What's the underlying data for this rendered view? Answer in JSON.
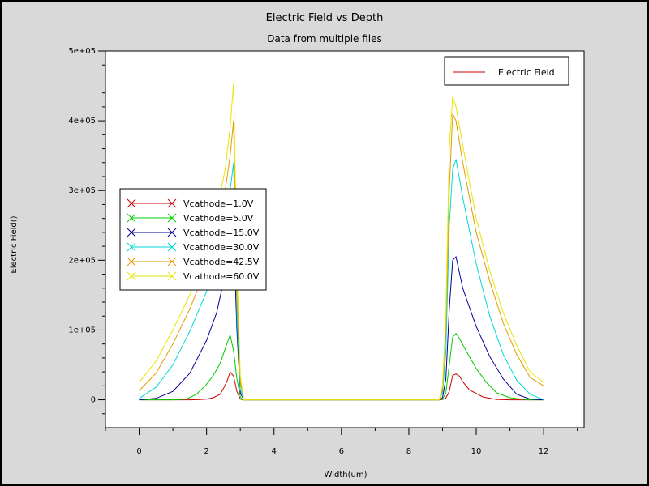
{
  "chart_data": {
    "type": "line",
    "title": "Electric Field vs Depth",
    "subtitle": "Data from multiple files",
    "xlabel": "Width(um)",
    "ylabel": "Electric Field()",
    "xlim": [
      -1,
      13.2
    ],
    "ylim": [
      -40000,
      500000
    ],
    "x_ticks": [
      0,
      2,
      4,
      6,
      8,
      10,
      12
    ],
    "y_ticks": [
      0,
      100000,
      200000,
      300000,
      400000,
      500000
    ],
    "y_tick_labels": [
      "0",
      "1e+05",
      "2e+05",
      "3e+05",
      "4e+05",
      "5e+05"
    ],
    "grid": false,
    "upper_legend": {
      "position": "top-right",
      "entry": {
        "name": "Electric Field",
        "color": "#cc0000"
      }
    },
    "legend_position": "center-left",
    "series": [
      {
        "name": "Vcathode=1.0V",
        "color": "#cc0000",
        "x": [
          0,
          0.5,
          1.0,
          1.5,
          1.8,
          2.0,
          2.2,
          2.4,
          2.5,
          2.6,
          2.7,
          2.8,
          2.9,
          3.0,
          3.1,
          3.5,
          5,
          7,
          8.9,
          9.0,
          9.1,
          9.2,
          9.3,
          9.4,
          9.5,
          9.6,
          9.8,
          10.2,
          10.6,
          11,
          12
        ],
        "y": [
          0,
          0,
          0,
          0,
          300,
          1000,
          3000,
          8000,
          16000,
          26000,
          40000,
          34000,
          12000,
          1000,
          0,
          0,
          0,
          0,
          0,
          500,
          2500,
          12000,
          35000,
          37000,
          34000,
          26000,
          14000,
          4000,
          500,
          0,
          0
        ]
      },
      {
        "name": "Vcathode=5.0V",
        "color": "#00cc00",
        "x": [
          0,
          0.5,
          1.0,
          1.4,
          1.7,
          2.0,
          2.2,
          2.4,
          2.6,
          2.7,
          2.8,
          2.9,
          3.0,
          3.05,
          3.1,
          5,
          7,
          8.9,
          9.0,
          9.1,
          9.2,
          9.3,
          9.4,
          9.5,
          9.7,
          10.0,
          10.3,
          10.6,
          11,
          11.5,
          12
        ],
        "y": [
          0,
          0,
          0,
          1000,
          8000,
          22000,
          35000,
          52000,
          80000,
          93000,
          70000,
          30000,
          5000,
          0,
          0,
          0,
          0,
          0,
          1000,
          10000,
          50000,
          90000,
          95000,
          88000,
          70000,
          45000,
          25000,
          10000,
          3000,
          0,
          0
        ]
      },
      {
        "name": "Vcathode=15.0V",
        "color": "#000099",
        "x": [
          0,
          0.5,
          1.0,
          1.5,
          2.0,
          2.3,
          2.55,
          2.7,
          2.78,
          2.9,
          3.0,
          3.1,
          5,
          7,
          8.9,
          9.0,
          9.1,
          9.2,
          9.3,
          9.4,
          9.6,
          10.0,
          10.4,
          10.8,
          11.2,
          11.6,
          12
        ],
        "y": [
          0,
          2000,
          12000,
          38000,
          85000,
          125000,
          180000,
          240000,
          270000,
          100000,
          10000,
          0,
          0,
          0,
          0,
          3000,
          30000,
          130000,
          200000,
          205000,
          160000,
          105000,
          62000,
          30000,
          8000,
          1000,
          0
        ]
      },
      {
        "name": "Vcathode=30.0V",
        "color": "#00d8d8",
        "x": [
          0,
          0.5,
          1.0,
          1.5,
          2.0,
          2.3,
          2.55,
          2.7,
          2.8,
          2.9,
          3.0,
          3.1,
          5,
          7,
          8.9,
          9.0,
          9.1,
          9.2,
          9.3,
          9.4,
          9.6,
          10.0,
          10.4,
          10.8,
          11.2,
          11.6,
          12
        ],
        "y": [
          2000,
          18000,
          50000,
          98000,
          155000,
          200000,
          250000,
          300000,
          340000,
          120000,
          15000,
          0,
          0,
          0,
          0,
          10000,
          70000,
          250000,
          330000,
          345000,
          290000,
          195000,
          120000,
          65000,
          28000,
          8000,
          0
        ]
      },
      {
        "name": "Vcathode=42.5V",
        "color": "#e59900",
        "x": [
          0,
          0.5,
          1.0,
          1.5,
          2.0,
          2.3,
          2.55,
          2.7,
          2.8,
          2.9,
          3.0,
          3.1,
          4.4,
          7,
          8.9,
          9.0,
          9.1,
          9.2,
          9.3,
          9.4,
          9.6,
          10.0,
          10.4,
          10.8,
          11.2,
          11.6,
          12
        ],
        "y": [
          13000,
          38000,
          80000,
          130000,
          190000,
          240000,
          300000,
          350000,
          400000,
          150000,
          25000,
          0,
          0,
          0,
          0,
          15000,
          100000,
          300000,
          410000,
          400000,
          340000,
          240000,
          170000,
          110000,
          65000,
          32000,
          20000
        ]
      },
      {
        "name": "Vcathode=60.0V",
        "color": "#e6e600",
        "x": [
          0,
          0.5,
          1.0,
          1.5,
          2.0,
          2.3,
          2.55,
          2.7,
          2.8,
          2.9,
          3.0,
          3.1,
          4.4,
          7,
          8.9,
          9.0,
          9.1,
          9.2,
          9.3,
          9.4,
          9.6,
          10.0,
          10.4,
          10.8,
          11.2,
          11.6,
          12
        ],
        "y": [
          25000,
          55000,
          100000,
          150000,
          215000,
          270000,
          330000,
          390000,
          455000,
          200000,
          35000,
          0,
          0,
          0,
          0,
          20000,
          120000,
          360000,
          435000,
          420000,
          365000,
          260000,
          185000,
          125000,
          78000,
          40000,
          25000
        ]
      }
    ]
  }
}
